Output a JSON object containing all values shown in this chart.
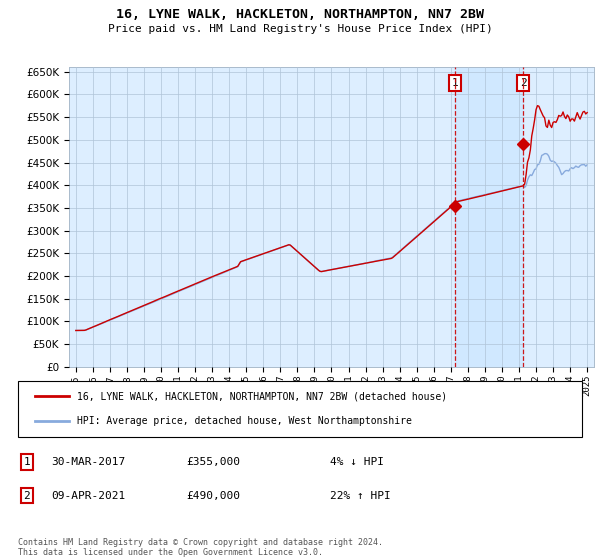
{
  "title": "16, LYNE WALK, HACKLETON, NORTHAMPTON, NN7 2BW",
  "subtitle": "Price paid vs. HM Land Registry's House Price Index (HPI)",
  "legend_line1": "16, LYNE WALK, HACKLETON, NORTHAMPTON, NN7 2BW (detached house)",
  "legend_line2": "HPI: Average price, detached house, West Northamptonshire",
  "transaction1_date": "30-MAR-2017",
  "transaction1_price": 355000,
  "transaction1_pct": "4% ↓ HPI",
  "transaction2_date": "09-APR-2021",
  "transaction2_price": 490000,
  "transaction2_pct": "22% ↑ HPI",
  "footnote": "Contains HM Land Registry data © Crown copyright and database right 2024.\nThis data is licensed under the Open Government Licence v3.0.",
  "red_color": "#cc0000",
  "blue_color": "#88aadd",
  "background_plot": "#ddeeff",
  "background_highlight": "#d0e8ff",
  "ylim": [
    0,
    660000
  ],
  "ylabel_step": 50000,
  "start_year": 1995,
  "end_year": 2025,
  "transaction1_year": 2017.25,
  "transaction2_year": 2021.25
}
